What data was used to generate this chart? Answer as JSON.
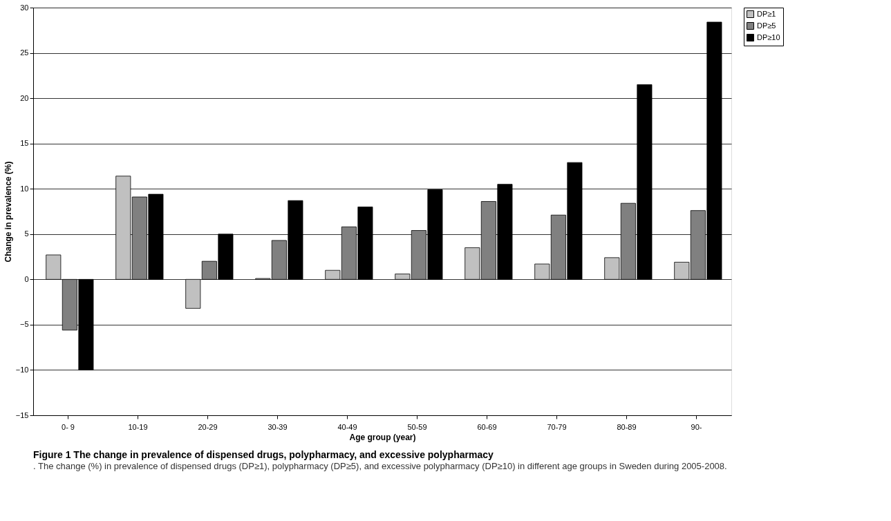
{
  "chart_data": {
    "type": "bar",
    "title": "Figure 1 The change in prevalence of dispensed drugs, polypharmacy, and excessive polypharmacy",
    "subtitle": ". The change (%) in prevalence of dispensed drugs (DP≥1), polypharmacy (DP≥5), and excessive polypharmacy (DP≥10) in different age groups in Sweden during 2005-2008.",
    "xlabel": "Age group (year)",
    "ylabel": "Change in prevalence (%)",
    "categories": [
      "0- 9",
      "10-19",
      "20-29",
      "30-39",
      "40-49",
      "50-59",
      "60-69",
      "70-79",
      "80-89",
      "90-"
    ],
    "series": [
      {
        "name": "DP≥1",
        "color": "#c0c0c0",
        "values": [
          2.7,
          11.4,
          -3.2,
          0.1,
          1.0,
          0.6,
          3.5,
          1.7,
          2.4,
          1.9
        ]
      },
      {
        "name": "DP≥5",
        "color": "#808080",
        "values": [
          -5.6,
          9.1,
          2.0,
          4.3,
          5.8,
          5.4,
          8.6,
          7.1,
          8.4,
          7.6
        ]
      },
      {
        "name": "DP≥10",
        "color": "#000000",
        "values": [
          -10.0,
          9.4,
          5.0,
          8.7,
          8.0,
          9.9,
          10.5,
          12.9,
          21.5,
          28.4
        ]
      }
    ],
    "ylim": [
      -15,
      30
    ],
    "yticks": [
      -15,
      -10,
      -5,
      0,
      5,
      10,
      15,
      20,
      25,
      30
    ],
    "grid": "y",
    "legend": "right"
  }
}
